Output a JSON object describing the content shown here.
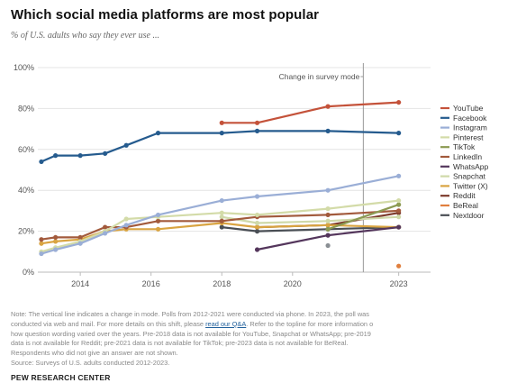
{
  "title": "Which social media platforms are most popular",
  "subtitle": "% of U.S. adults who say they ever use ...",
  "note": {
    "line1": "Note: The vertical line indicates a change in mode. Polls from 2012-2021 were conducted via phone. In 2023, the poll was",
    "line2_before": "conducted via web and mail. For more details on this shift, please ",
    "line2_link": "read our Q&A",
    "line2_after": ". Refer to the topline for more information o",
    "line3": "how question wording varied over the years. Pre-2018 data is not available for YouTube, Snapchat or WhatsApp; pre-2019",
    "line4": "data is not available for Reddit; pre-2021 data is not available for TikTok; pre-2023 data is not available for BeReal.",
    "line5": "Respondents who did not give an answer are not shown.",
    "source": "Source: Surveys of U.S. adults conducted 2012-2023."
  },
  "footer": "PEW RESEARCH CENTER",
  "chart_data": {
    "type": "line",
    "title": "Which social media platforms are most popular",
    "subtitle": "% of U.S. adults who say they ever use ...",
    "xlim": [
      2012.8,
      2023.9
    ],
    "ylim": [
      0,
      100
    ],
    "x_ticks": [
      2014,
      2016,
      2018,
      2020,
      2023
    ],
    "y_ticks": [
      "0%",
      "20%",
      "40%",
      "60%",
      "80%",
      "100%"
    ],
    "y_tick_values": [
      0,
      20,
      40,
      60,
      80,
      100
    ],
    "grid": true,
    "legend": "right",
    "annotation": {
      "text": "Change in survey mode",
      "x": 2022
    },
    "series": [
      {
        "name": "YouTube",
        "color": "#c4523a",
        "x": [
          2018,
          2019,
          2021,
          2023
        ],
        "values": [
          73,
          73,
          81,
          83
        ]
      },
      {
        "name": "Facebook",
        "color": "#255b8e",
        "x": [
          2012.9,
          2013.3,
          2014.0,
          2014.7,
          2015.3,
          2016.2,
          2018,
          2019,
          2021,
          2023
        ],
        "values": [
          54,
          57,
          57,
          58,
          62,
          68,
          68,
          69,
          69,
          68
        ]
      },
      {
        "name": "Instagram",
        "color": "#9aaed6",
        "x": [
          2012.9,
          2013.3,
          2014.0,
          2014.7,
          2015.3,
          2016.2,
          2018,
          2019,
          2021,
          2023
        ],
        "values": [
          9,
          11,
          14,
          19,
          23,
          28,
          35,
          37,
          40,
          47
        ]
      },
      {
        "name": "Pinterest",
        "color": "#d3dba8",
        "x": [
          2012.9,
          2013.3,
          2014.0,
          2014.7,
          2015.3,
          2016.2,
          2018,
          2019,
          2021,
          2023
        ],
        "values": [
          10,
          12,
          15,
          20,
          26,
          27,
          29,
          28,
          31,
          35
        ]
      },
      {
        "name": "TikTok",
        "color": "#8c9a52",
        "x": [
          2021,
          2023
        ],
        "values": [
          21,
          33
        ]
      },
      {
        "name": "LinkedIn",
        "color": "#a25a3c",
        "x": [
          2012.9,
          2013.3,
          2014.0,
          2014.7,
          2015.3,
          2016.2,
          2018,
          2019,
          2021,
          2023
        ],
        "values": [
          16,
          17,
          17,
          22,
          22,
          25,
          25,
          27,
          28,
          30
        ]
      },
      {
        "name": "WhatsApp",
        "color": "#54365c",
        "x": [
          2019,
          2021,
          2023
        ],
        "values": [
          11,
          18,
          22
        ]
      },
      {
        "name": "Snapchat",
        "color": "#cfd9a9",
        "x": [
          2018,
          2019,
          2021,
          2023
        ],
        "values": [
          27,
          24,
          25,
          27
        ]
      },
      {
        "name": "Twitter (X)",
        "color": "#d9a441",
        "x": [
          2012.9,
          2013.3,
          2014.0,
          2014.7,
          2015.3,
          2016.2,
          2018,
          2019,
          2021,
          2023
        ],
        "values": [
          14,
          15,
          16,
          20,
          21,
          21,
          24,
          22,
          23,
          22
        ]
      },
      {
        "name": "Reddit",
        "color": "#7d3b2c",
        "x": [
          2019,
          2021,
          2023
        ],
        "values": [
          22,
          23,
          29
        ]
      },
      {
        "name": "BeReal",
        "color": "#e07f3e",
        "x": [
          2023
        ],
        "values": [
          3
        ]
      },
      {
        "name": "Nextdoor",
        "color": "#4a4f55",
        "x": [
          2018,
          2019,
          2021,
          2023
        ],
        "values": [
          22,
          20,
          21,
          22
        ]
      }
    ],
    "extra_points": [
      {
        "x": 2021,
        "value": 13,
        "color": "#8a8f94"
      }
    ]
  }
}
